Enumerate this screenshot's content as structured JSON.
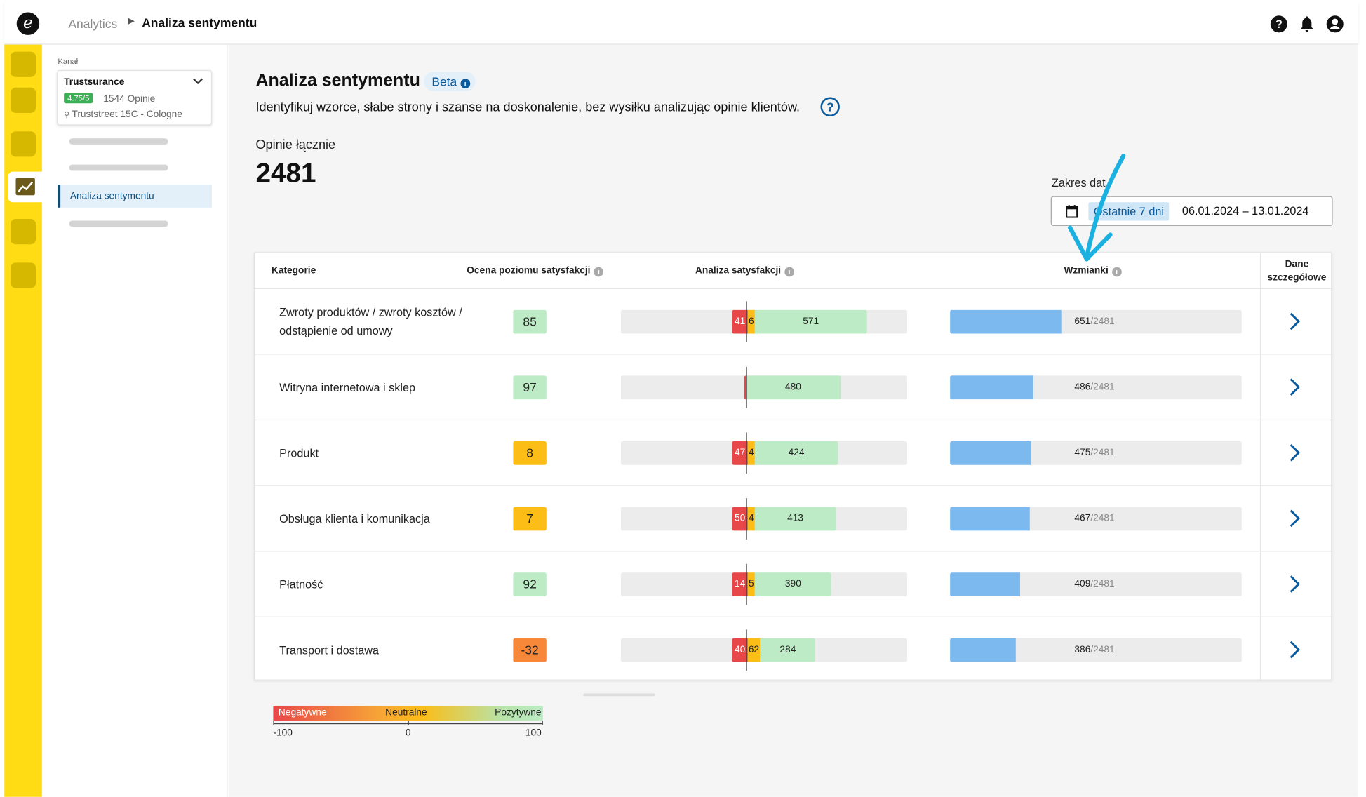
{
  "topbar": {
    "logo": "e",
    "breadcrumb": [
      "Analytics",
      "Analiza sentymentu"
    ],
    "icons": [
      "help-icon",
      "bell-icon",
      "account-icon"
    ]
  },
  "sidebar": {
    "section_label": "Kanał",
    "channel": {
      "name": "Trustsurance",
      "rating": "4.75/5",
      "reviews": "1544 Opinie",
      "address": "Truststreet 15C - Cologne"
    },
    "active_item": "Analiza sentymentu"
  },
  "page": {
    "title": "Analiza sentymentu",
    "badge": "Beta",
    "badge_info": "i",
    "subtitle": "Identyfikuj wzorce, słabe strony i szanse na doskonalenie, bez wysiłku analizując opinie klientów.",
    "help": "?",
    "total_label": "Opinie łącznie",
    "total_value": "2481"
  },
  "date": {
    "label": "Zakres dat",
    "preset": "Ostatnie 7 dni",
    "range": "06.01.2024  –  13.01.2024"
  },
  "table": {
    "headers": {
      "category": "Kategorie",
      "score": "Ocena poziomu satysfakcji",
      "analysis": "Analiza satysfakcji",
      "mentions": "Wzmianki",
      "details": "Dane szczegółowe"
    },
    "total": 2481,
    "rows": [
      {
        "category": "Zwroty produktów / zwroty kosztów / odstąpienie od umowy",
        "score": "85",
        "score_color": "#bcebc5",
        "neg": 41,
        "neu": 6,
        "pos": 571,
        "mentions": 651
      },
      {
        "category": "Witryna internetowa i sklep",
        "score": "97",
        "score_color": "#bcebc5",
        "neg": 0,
        "neu": 0,
        "pos": 480,
        "mentions": 486
      },
      {
        "category": "Produkt",
        "score": "8",
        "score_color": "#fcbd16",
        "neg": 47,
        "neu": 4,
        "pos": 424,
        "mentions": 475
      },
      {
        "category": "Obsługa klienta i komunikacja",
        "score": "7",
        "score_color": "#fcbd16",
        "neg": 50,
        "neu": 4,
        "pos": 413,
        "mentions": 467
      },
      {
        "category": "Płatność",
        "score": "92",
        "score_color": "#bcebc5",
        "neg": 14,
        "neu": 5,
        "pos": 390,
        "mentions": 409
      },
      {
        "category": "Transport i dostawa",
        "score": "-32",
        "score_color": "#f7883a",
        "neg": 40,
        "neu": 62,
        "pos": 284,
        "mentions": 386
      }
    ]
  },
  "legend": {
    "negative": "Negatywne",
    "neutral": "Neutralne",
    "positive": "Pozytywne",
    "min": "-100",
    "mid": "0",
    "max": "100"
  },
  "colors": {
    "rail": "#ffdc14",
    "accent": "#0a5a9e",
    "negative": "#e8474a",
    "neutral": "#fcbd16",
    "positive": "#bcebc5",
    "mentions": "#7bb9ef",
    "annotation_arrow": "#1ab0e0"
  }
}
